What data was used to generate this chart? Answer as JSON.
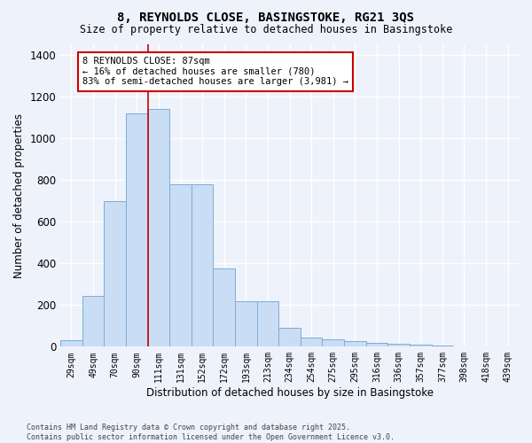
{
  "title1": "8, REYNOLDS CLOSE, BASINGSTOKE, RG21 3QS",
  "title2": "Size of property relative to detached houses in Basingstoke",
  "xlabel": "Distribution of detached houses by size in Basingstoke",
  "ylabel": "Number of detached properties",
  "categories": [
    "29sqm",
    "49sqm",
    "70sqm",
    "90sqm",
    "111sqm",
    "131sqm",
    "152sqm",
    "172sqm",
    "193sqm",
    "213sqm",
    "234sqm",
    "254sqm",
    "275sqm",
    "295sqm",
    "316sqm",
    "336sqm",
    "357sqm",
    "377sqm",
    "398sqm",
    "418sqm",
    "439sqm"
  ],
  "values": [
    30,
    245,
    700,
    1120,
    1140,
    780,
    780,
    375,
    220,
    220,
    90,
    45,
    35,
    25,
    20,
    15,
    10,
    5,
    0,
    3,
    0
  ],
  "bar_color": "#c9ddf5",
  "bar_edge_color": "#7baed4",
  "vline_color": "#cc0000",
  "vline_pos": 3.5,
  "annotation_text": "8 REYNOLDS CLOSE: 87sqm\n← 16% of detached houses are smaller (780)\n83% of semi-detached houses are larger (3,981) →",
  "annotation_box_color": "#ffffff",
  "annotation_box_edge": "#cc0000",
  "ylim": [
    0,
    1450
  ],
  "yticks": [
    0,
    200,
    400,
    600,
    800,
    1000,
    1200,
    1400
  ],
  "footer1": "Contains HM Land Registry data © Crown copyright and database right 2025.",
  "footer2": "Contains public sector information licensed under the Open Government Licence v3.0.",
  "bg_color": "#eef2fb",
  "grid_color": "#ffffff"
}
